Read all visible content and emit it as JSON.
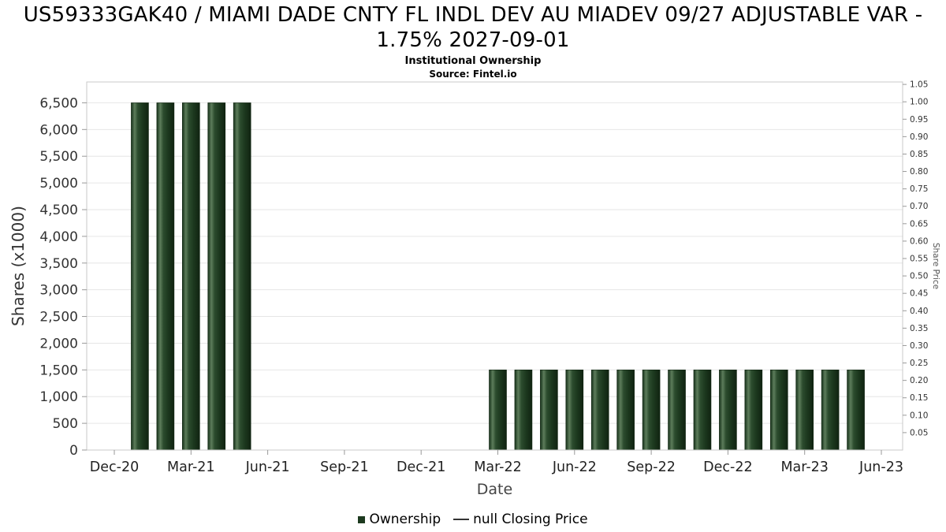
{
  "header": {
    "title": "US59333GAK40 / MIAMI DADE CNTY FL INDL DEV AU MIADEV 09/27 ADJUSTABLE VAR - 1.75% 2027-09-01",
    "subtitle": "Institutional Ownership",
    "source": "Source: Fintel.io"
  },
  "legend": {
    "items": [
      {
        "label": "Ownership",
        "marker": "square",
        "color": "#1d3a1f"
      },
      {
        "label": "null Closing Price",
        "marker": "line",
        "color": "#333333"
      }
    ]
  },
  "chart_data": {
    "type": "bar",
    "title": "US59333GAK40 / MIAMI DADE CNTY FL INDL DEV AU MIADEV 09/27 ADJUSTABLE VAR - 1.75% 2027-09-01",
    "subtitle": "Institutional Ownership",
    "source": "Source: Fintel.io",
    "xlabel": "Date",
    "ylabel_left": "Shares (x1000)",
    "ylabel_right": "Share Price",
    "grid": "horizontal",
    "legend_position": "bottom",
    "bar_color": "#1d3a1f",
    "x_axis": {
      "months_total": 30,
      "ticks": [
        {
          "label": "Dec-20",
          "month_index": 0
        },
        {
          "label": "Mar-21",
          "month_index": 3
        },
        {
          "label": "Jun-21",
          "month_index": 6
        },
        {
          "label": "Sep-21",
          "month_index": 9
        },
        {
          "label": "Dec-21",
          "month_index": 12
        },
        {
          "label": "Mar-22",
          "month_index": 15
        },
        {
          "label": "Jun-22",
          "month_index": 18
        },
        {
          "label": "Sep-22",
          "month_index": 21
        },
        {
          "label": "Dec-22",
          "month_index": 24
        },
        {
          "label": "Mar-23",
          "month_index": 27
        },
        {
          "label": "Jun-23",
          "month_index": 30
        }
      ]
    },
    "y_axis_left": {
      "min": 0,
      "max": 6890,
      "ticks": [
        {
          "v": 0,
          "label": "0"
        },
        {
          "v": 500,
          "label": "500"
        },
        {
          "v": 1000,
          "label": "1,000"
        },
        {
          "v": 1500,
          "label": "1,500"
        },
        {
          "v": 2000,
          "label": "2,000"
        },
        {
          "v": 2500,
          "label": "2,500"
        },
        {
          "v": 3000,
          "label": "3,000"
        },
        {
          "v": 3500,
          "label": "3,500"
        },
        {
          "v": 4000,
          "label": "4,000"
        },
        {
          "v": 4500,
          "label": "4,500"
        },
        {
          "v": 5000,
          "label": "5,000"
        },
        {
          "v": 5500,
          "label": "5,500"
        },
        {
          "v": 6000,
          "label": "6,000"
        },
        {
          "v": 6500,
          "label": "6,500"
        }
      ]
    },
    "y_axis_right": {
      "min": 0,
      "max": 1.057,
      "ticks": [
        {
          "v": 0.05,
          "label": "0.05"
        },
        {
          "v": 0.1,
          "label": "0.10"
        },
        {
          "v": 0.15,
          "label": "0.15"
        },
        {
          "v": 0.2,
          "label": "0.20"
        },
        {
          "v": 0.25,
          "label": "0.25"
        },
        {
          "v": 0.3,
          "label": "0.30"
        },
        {
          "v": 0.35,
          "label": "0.35"
        },
        {
          "v": 0.4,
          "label": "0.40"
        },
        {
          "v": 0.45,
          "label": "0.45"
        },
        {
          "v": 0.5,
          "label": "0.50"
        },
        {
          "v": 0.55,
          "label": "0.55"
        },
        {
          "v": 0.6,
          "label": "0.60"
        },
        {
          "v": 0.65,
          "label": "0.65"
        },
        {
          "v": 0.7,
          "label": "0.70"
        },
        {
          "v": 0.75,
          "label": "0.75"
        },
        {
          "v": 0.8,
          "label": "0.80"
        },
        {
          "v": 0.85,
          "label": "0.85"
        },
        {
          "v": 0.9,
          "label": "0.90"
        },
        {
          "v": 0.95,
          "label": "0.95"
        },
        {
          "v": 1.0,
          "label": "1.00"
        },
        {
          "v": 1.05,
          "label": "1.05"
        }
      ]
    },
    "series": [
      {
        "name": "Ownership",
        "type": "bar",
        "color": "#1d3a1f",
        "points": [
          {
            "month": "Jan-21",
            "month_index": 1,
            "value": 6500
          },
          {
            "month": "Feb-21",
            "month_index": 2,
            "value": 6500
          },
          {
            "month": "Mar-21",
            "month_index": 3,
            "value": 6500
          },
          {
            "month": "Apr-21",
            "month_index": 4,
            "value": 6500
          },
          {
            "month": "May-21",
            "month_index": 5,
            "value": 6500
          },
          {
            "month": "Mar-22",
            "month_index": 15,
            "value": 1500
          },
          {
            "month": "Apr-22",
            "month_index": 16,
            "value": 1500
          },
          {
            "month": "May-22",
            "month_index": 17,
            "value": 1500
          },
          {
            "month": "Jun-22",
            "month_index": 18,
            "value": 1500
          },
          {
            "month": "Jul-22",
            "month_index": 19,
            "value": 1500
          },
          {
            "month": "Aug-22",
            "month_index": 20,
            "value": 1500
          },
          {
            "month": "Sep-22",
            "month_index": 21,
            "value": 1500
          },
          {
            "month": "Oct-22",
            "month_index": 22,
            "value": 1500
          },
          {
            "month": "Nov-22",
            "month_index": 23,
            "value": 1500
          },
          {
            "month": "Dec-22",
            "month_index": 24,
            "value": 1500
          },
          {
            "month": "Jan-23",
            "month_index": 25,
            "value": 1500
          },
          {
            "month": "Feb-23",
            "month_index": 26,
            "value": 1500
          },
          {
            "month": "Mar-23",
            "month_index": 27,
            "value": 1500
          },
          {
            "month": "Apr-23",
            "month_index": 28,
            "value": 1500
          },
          {
            "month": "May-23",
            "month_index": 29,
            "value": 1500
          }
        ]
      },
      {
        "name": "null Closing Price",
        "type": "line",
        "color": "#333333",
        "points": []
      }
    ]
  }
}
